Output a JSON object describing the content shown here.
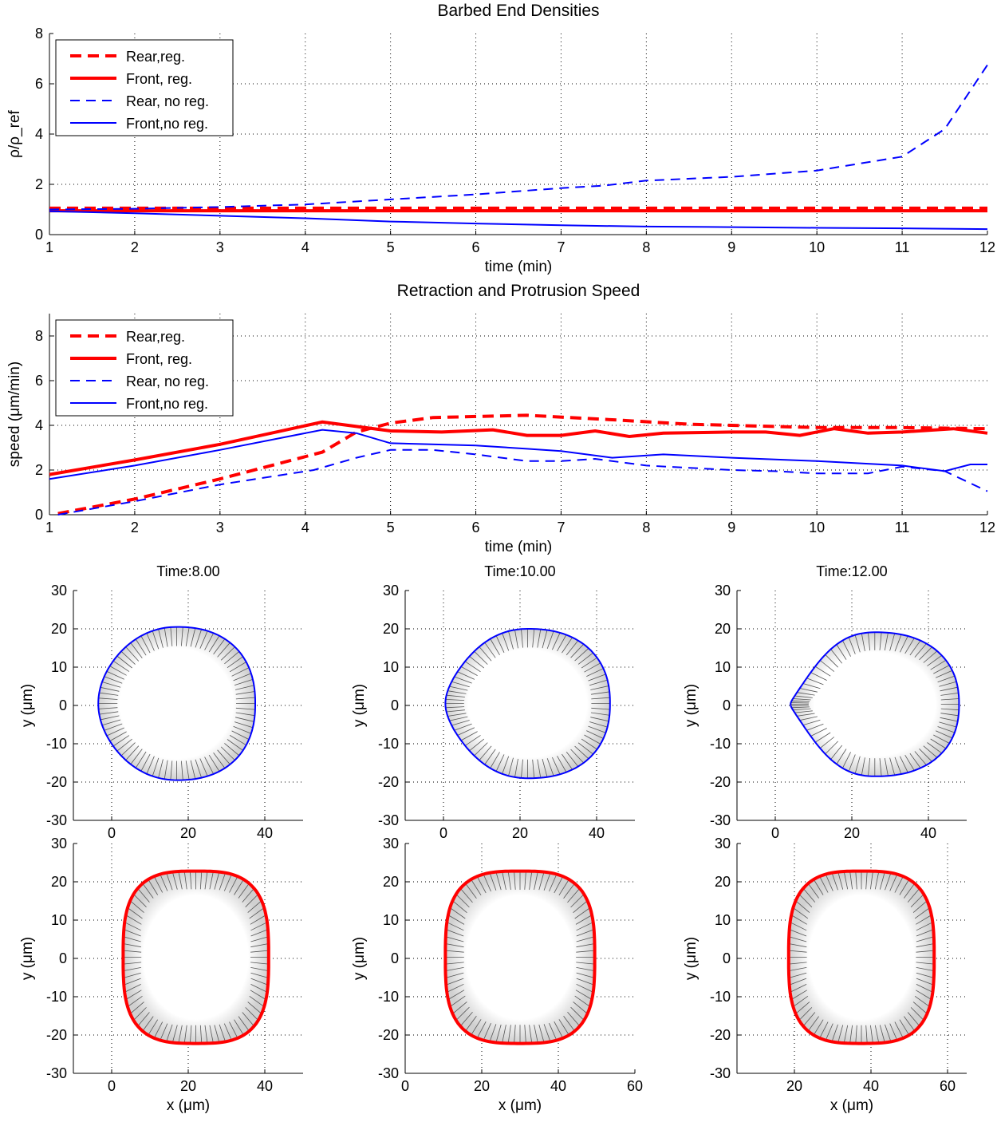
{
  "chart_data": [
    {
      "type": "line",
      "title": "Barbed End Densities",
      "xlabel": "time (min)",
      "ylabel": "ρ/ρ_ref",
      "xlim": [
        1,
        12
      ],
      "ylim": [
        0,
        8
      ],
      "xticks": [
        1,
        2,
        3,
        4,
        5,
        6,
        7,
        8,
        9,
        10,
        11,
        12
      ],
      "yticks": [
        0,
        2,
        4,
        6,
        8
      ],
      "grid": true,
      "legend_position": "top-left",
      "series": [
        {
          "name": "Rear,reg.",
          "color": "#ff0000",
          "style": "dashed",
          "weight": "thick",
          "x": [
            1,
            12
          ],
          "y": [
            1.05,
            1.05
          ]
        },
        {
          "name": "Front, reg.",
          "color": "#ff0000",
          "style": "solid",
          "weight": "thick",
          "x": [
            1,
            12
          ],
          "y": [
            0.95,
            0.95
          ]
        },
        {
          "name": "Rear, no reg.",
          "color": "#0000ff",
          "style": "dashed",
          "weight": "thin",
          "x": [
            1,
            2,
            3,
            4,
            5,
            6,
            7,
            7.5,
            8,
            9,
            10,
            11,
            11.5,
            12
          ],
          "y": [
            1.0,
            1.03,
            1.1,
            1.2,
            1.4,
            1.6,
            1.85,
            1.95,
            2.15,
            2.3,
            2.55,
            3.1,
            4.2,
            6.75
          ]
        },
        {
          "name": "Front,no reg.",
          "color": "#0000ff",
          "style": "solid",
          "weight": "thin",
          "x": [
            1,
            2,
            3,
            4,
            5,
            6,
            7,
            8,
            9,
            10,
            11,
            12
          ],
          "y": [
            0.93,
            0.85,
            0.75,
            0.65,
            0.52,
            0.44,
            0.37,
            0.32,
            0.3,
            0.27,
            0.25,
            0.22
          ]
        }
      ]
    },
    {
      "type": "line",
      "title": "Retraction and Protrusion Speed",
      "xlabel": "time (min)",
      "ylabel": "speed (μm/min)",
      "xlim": [
        1,
        12
      ],
      "ylim": [
        0,
        9
      ],
      "xticks": [
        1,
        2,
        3,
        4,
        5,
        6,
        7,
        8,
        9,
        10,
        11,
        12
      ],
      "yticks": [
        0,
        2,
        4,
        6,
        8
      ],
      "grid": true,
      "legend_position": "top-left",
      "series": [
        {
          "name": "Rear,reg.",
          "color": "#ff0000",
          "style": "dashed",
          "weight": "thick",
          "x": [
            1.1,
            2,
            3,
            4.2,
            4.6,
            5,
            5.5,
            6.6,
            7.6,
            8.5,
            9.5,
            10,
            11,
            12
          ],
          "y": [
            0.05,
            0.7,
            1.6,
            2.8,
            3.7,
            4.1,
            4.35,
            4.45,
            4.25,
            4.05,
            3.95,
            3.9,
            3.9,
            3.85
          ]
        },
        {
          "name": "Front, reg.",
          "color": "#ff0000",
          "style": "solid",
          "weight": "thick",
          "x": [
            1,
            2,
            3,
            4.2,
            4.6,
            5,
            5.6,
            6.2,
            6.6,
            7,
            7.4,
            7.8,
            8.2,
            9,
            9.4,
            9.8,
            10.2,
            10.6,
            11,
            11.6,
            12
          ],
          "y": [
            1.8,
            2.45,
            3.15,
            4.15,
            3.95,
            3.75,
            3.7,
            3.8,
            3.55,
            3.55,
            3.75,
            3.5,
            3.65,
            3.7,
            3.7,
            3.55,
            3.85,
            3.65,
            3.7,
            3.85,
            3.65
          ]
        },
        {
          "name": "Rear, no reg.",
          "color": "#0000ff",
          "style": "dashed",
          "weight": "thin",
          "x": [
            1.1,
            2,
            3,
            4.1,
            4.6,
            5,
            5.5,
            6,
            6.6,
            7,
            7.4,
            8,
            8.5,
            9,
            9.5,
            10,
            10.6,
            11,
            11.5,
            12
          ],
          "y": [
            0.0,
            0.6,
            1.35,
            2.0,
            2.55,
            2.9,
            2.9,
            2.7,
            2.4,
            2.4,
            2.5,
            2.2,
            2.1,
            2.0,
            1.95,
            1.85,
            1.85,
            2.15,
            1.95,
            1.05
          ]
        },
        {
          "name": "Front,no reg.",
          "color": "#0000ff",
          "style": "solid",
          "weight": "thin",
          "x": [
            1,
            2,
            3,
            4.2,
            4.6,
            5,
            6,
            6.6,
            7,
            7.6,
            8.2,
            9,
            10,
            11,
            11.5,
            11.8,
            12
          ],
          "y": [
            1.6,
            2.2,
            2.9,
            3.8,
            3.65,
            3.2,
            3.1,
            2.95,
            2.85,
            2.55,
            2.7,
            2.55,
            2.4,
            2.2,
            1.95,
            2.25,
            2.25
          ]
        }
      ]
    },
    {
      "type": "scatter",
      "subtype": "cell-shape",
      "title": "Time:8.00",
      "xlabel": "",
      "ylabel": "y (μm)",
      "xlim": [
        -10,
        50
      ],
      "ylim": [
        -30,
        30
      ],
      "xticks": [
        0,
        20,
        40
      ],
      "yticks": [
        -30,
        -20,
        -10,
        0,
        10,
        20,
        30
      ],
      "color": "#0000ff",
      "weight": "thin",
      "cell": {
        "cx": 17,
        "cy": 0.5,
        "rx": 20.5,
        "ry": 20,
        "left_point": 0.12,
        "right_flat": 0.15
      },
      "rays": 80,
      "ray_depth_fraction": 0.25
    },
    {
      "type": "scatter",
      "subtype": "cell-shape",
      "title": "Time:10.00",
      "xlabel": "",
      "ylabel": "y (μm)",
      "xlim": [
        -10,
        50
      ],
      "ylim": [
        -30,
        30
      ],
      "xticks": [
        0,
        20,
        40
      ],
      "yticks": [
        -30,
        -20,
        -10,
        0,
        10,
        20,
        30
      ],
      "color": "#0000ff",
      "weight": "thin",
      "cell": {
        "cx": 22,
        "cy": 0.5,
        "rx": 21.5,
        "ry": 19.5,
        "left_point": 0.35,
        "right_flat": 0.15
      },
      "rays": 80,
      "ray_depth_fraction": 0.25
    },
    {
      "type": "scatter",
      "subtype": "cell-shape",
      "title": "Time:12.00",
      "xlabel": "",
      "ylabel": "y (μm)",
      "xlim": [
        -10,
        50
      ],
      "ylim": [
        -30,
        30
      ],
      "xticks": [
        0,
        20,
        40
      ],
      "yticks": [
        -30,
        -20,
        -10,
        0,
        10,
        20,
        30
      ],
      "color": "#0000ff",
      "weight": "thin",
      "cell": {
        "cx": 26,
        "cy": 0.3,
        "rx": 22,
        "ry": 18.8,
        "left_point": 0.85,
        "right_flat": 0.15
      },
      "rays": 80,
      "ray_depth_fraction": 0.25
    },
    {
      "type": "scatter",
      "subtype": "cell-shape",
      "title": "",
      "xlabel": "x (μm)",
      "ylabel": "y (μm)",
      "xlim": [
        -10,
        50
      ],
      "ylim": [
        -30,
        30
      ],
      "xticks": [
        0,
        20,
        40
      ],
      "yticks": [
        -30,
        -20,
        -10,
        0,
        10,
        20,
        30
      ],
      "color": "#ff0000",
      "weight": "thick",
      "cell": {
        "cx": 22,
        "cy": 0.3,
        "rx": 19,
        "ry": 22.5,
        "left_point": 0,
        "right_flat": 0.55,
        "left_flat": 0.55
      },
      "rays": 80,
      "ray_depth_fraction": 0.25
    },
    {
      "type": "scatter",
      "subtype": "cell-shape",
      "title": "",
      "xlabel": "x (μm)",
      "ylabel": "y (μm)",
      "xlim": [
        0,
        60
      ],
      "ylim": [
        -30,
        30
      ],
      "xticks": [
        0,
        20,
        40,
        60
      ],
      "yticks": [
        -30,
        -20,
        -10,
        0,
        10,
        20,
        30
      ],
      "color": "#ff0000",
      "weight": "thick",
      "cell": {
        "cx": 30,
        "cy": 0.3,
        "rx": 19.5,
        "ry": 22.5,
        "left_point": 0,
        "right_flat": 0.55,
        "left_flat": 0.55
      },
      "rays": 80,
      "ray_depth_fraction": 0.25
    },
    {
      "type": "scatter",
      "subtype": "cell-shape",
      "title": "",
      "xlabel": "x (μm)",
      "ylabel": "y (μm)",
      "xlim": [
        5,
        65
      ],
      "ylim": [
        -30,
        30
      ],
      "xticks": [
        20,
        40,
        60
      ],
      "yticks": [
        -30,
        -20,
        -10,
        0,
        10,
        20,
        30
      ],
      "color": "#ff0000",
      "weight": "thick",
      "cell": {
        "cx": 37.5,
        "cy": 0.3,
        "rx": 19,
        "ry": 22.5,
        "left_point": 0,
        "right_flat": 0.55,
        "left_flat": 0.55
      },
      "rays": 80,
      "ray_depth_fraction": 0.25
    }
  ]
}
